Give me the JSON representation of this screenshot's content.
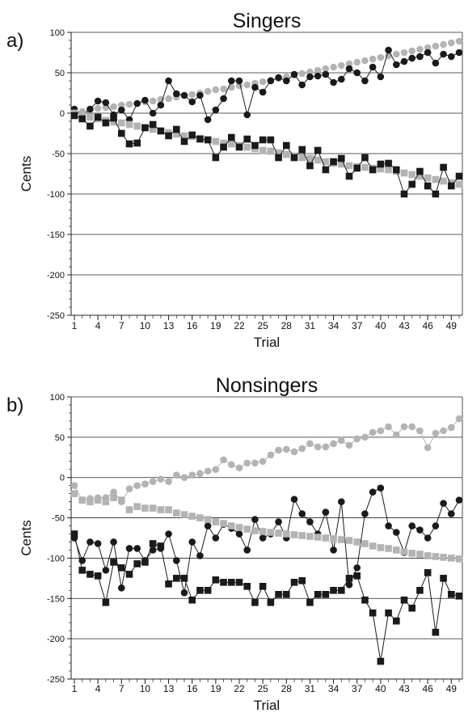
{
  "chart_data": [
    {
      "type": "line",
      "panel_label": "a)",
      "title": "Singers",
      "xlabel": "Trial",
      "ylabel": "Cents",
      "ylim": [
        -250,
        100
      ],
      "yticks": [
        100,
        50,
        0,
        -50,
        -100,
        -150,
        -200,
        -250
      ],
      "xlim": [
        1,
        50
      ],
      "xticks": [
        1,
        4,
        7,
        10,
        13,
        16,
        19,
        22,
        25,
        28,
        31,
        34,
        37,
        40,
        43,
        46,
        49
      ],
      "grid": "horizontal",
      "colors": {
        "black": "#1a1a1a",
        "gray": "#b3b3b3"
      },
      "series": [
        {
          "color": "gray",
          "marker": "circle",
          "line": false,
          "values": [
            0,
            2,
            4,
            6,
            7,
            8,
            10,
            11,
            12,
            14,
            15,
            17,
            18,
            20,
            22,
            23,
            25,
            27,
            29,
            30,
            32,
            34,
            35,
            37,
            39,
            41,
            43,
            45,
            47,
            49,
            51,
            53,
            55,
            57,
            59,
            61,
            63,
            65,
            67,
            69,
            71,
            73,
            75,
            77,
            79,
            81,
            83,
            85,
            87,
            89
          ]
        },
        {
          "color": "black",
          "marker": "circle",
          "line": true,
          "values": [
            5,
            -2,
            5,
            15,
            13,
            -2,
            4,
            -8,
            12,
            16,
            0,
            10,
            40,
            24,
            22,
            14,
            22,
            -8,
            4,
            18,
            40,
            40,
            -2,
            32,
            26,
            40,
            44,
            40,
            48,
            35,
            45,
            46,
            48,
            38,
            42,
            55,
            50,
            40,
            57,
            45,
            78,
            60,
            64,
            68,
            70,
            75,
            62,
            73,
            70,
            75
          ]
        },
        {
          "color": "gray",
          "marker": "square",
          "line": false,
          "values": [
            0,
            -2,
            -5,
            -7,
            -9,
            -11,
            -12,
            -14,
            -16,
            -18,
            -20,
            -22,
            -24,
            -26,
            -28,
            -29,
            -31,
            -33,
            -35,
            -37,
            -38,
            -40,
            -42,
            -44,
            -46,
            -47,
            -49,
            -51,
            -53,
            -55,
            -56,
            -58,
            -60,
            -62,
            -63,
            -65,
            -66,
            -67,
            -68,
            -69,
            -70,
            -72,
            -74,
            -76,
            -78,
            -80,
            -82,
            -84,
            -86,
            -88
          ]
        },
        {
          "color": "black",
          "marker": "square",
          "line": true,
          "values": [
            -3,
            -7,
            -16,
            -5,
            -12,
            -6,
            -25,
            -38,
            -37,
            -18,
            -14,
            -22,
            -28,
            -20,
            -35,
            -27,
            -32,
            -33,
            -55,
            -42,
            -30,
            -42,
            -32,
            -40,
            -33,
            -33,
            -55,
            -40,
            -55,
            -45,
            -65,
            -46,
            -70,
            -60,
            -56,
            -78,
            -68,
            -55,
            -70,
            -63,
            -62,
            -70,
            -100,
            -88,
            -72,
            -90,
            -100,
            -67,
            -90,
            -78
          ]
        }
      ]
    },
    {
      "type": "line",
      "panel_label": "b)",
      "title": "Nonsingers",
      "xlabel": "Trial",
      "ylabel": "Cents",
      "ylim": [
        -250,
        100
      ],
      "yticks": [
        100,
        50,
        0,
        -50,
        -100,
        -150,
        -200,
        -250
      ],
      "xlim": [
        1,
        50
      ],
      "xticks": [
        1,
        4,
        7,
        10,
        13,
        16,
        19,
        22,
        25,
        28,
        31,
        34,
        37,
        40,
        43,
        46,
        49
      ],
      "grid": "horizontal",
      "colors": {
        "black": "#1a1a1a",
        "gray": "#b3b3b3"
      },
      "series": [
        {
          "color": "gray",
          "marker": "circle",
          "line": true,
          "values": [
            -10,
            -28,
            -26,
            -25,
            -25,
            -18,
            -30,
            -14,
            -10,
            -8,
            -5,
            -2,
            -5,
            3,
            0,
            3,
            5,
            8,
            10,
            22,
            16,
            12,
            18,
            18,
            20,
            28,
            34,
            35,
            32,
            36,
            42,
            38,
            38,
            42,
            46,
            40,
            48,
            50,
            56,
            58,
            63,
            53,
            63,
            63,
            58,
            37,
            55,
            58,
            62,
            73
          ]
        },
        {
          "color": "black",
          "marker": "circle",
          "line": true,
          "values": [
            -75,
            -103,
            -80,
            -82,
            -115,
            -80,
            -137,
            -88,
            -88,
            -103,
            -90,
            -88,
            -70,
            -103,
            -143,
            -80,
            -97,
            -60,
            -75,
            -58,
            -63,
            -70,
            -90,
            -52,
            -75,
            -70,
            -55,
            -75,
            -27,
            -45,
            -55,
            -70,
            -43,
            -90,
            -30,
            -133,
            -112,
            -45,
            -18,
            -13,
            -60,
            -68,
            -93,
            -60,
            -65,
            -75,
            -60,
            -32,
            -45,
            -28
          ]
        },
        {
          "color": "gray",
          "marker": "square",
          "line": false,
          "values": [
            -20,
            -28,
            -30,
            -28,
            -30,
            -25,
            -28,
            -40,
            -36,
            -38,
            -38,
            -40,
            -40,
            -44,
            -46,
            -48,
            -50,
            -52,
            -55,
            -57,
            -60,
            -62,
            -64,
            -66,
            -67,
            -68,
            -69,
            -70,
            -71,
            -72,
            -73,
            -74,
            -75,
            -76,
            -77,
            -78,
            -80,
            -82,
            -85,
            -87,
            -88,
            -90,
            -92,
            -94,
            -95,
            -97,
            -98,
            -99,
            -100,
            -101
          ]
        },
        {
          "color": "black",
          "marker": "square",
          "line": true,
          "values": [
            -70,
            -115,
            -120,
            -122,
            -155,
            -105,
            -112,
            -120,
            -107,
            -105,
            -82,
            -85,
            -132,
            -125,
            -125,
            -152,
            -140,
            -140,
            -127,
            -130,
            -130,
            -130,
            -135,
            -155,
            -135,
            -155,
            -145,
            -145,
            -130,
            -128,
            -155,
            -145,
            -145,
            -140,
            -140,
            -125,
            -122,
            -152,
            -168,
            -228,
            -168,
            -178,
            -152,
            -162,
            -140,
            -118,
            -192,
            -125,
            -145,
            -147
          ]
        }
      ]
    }
  ]
}
